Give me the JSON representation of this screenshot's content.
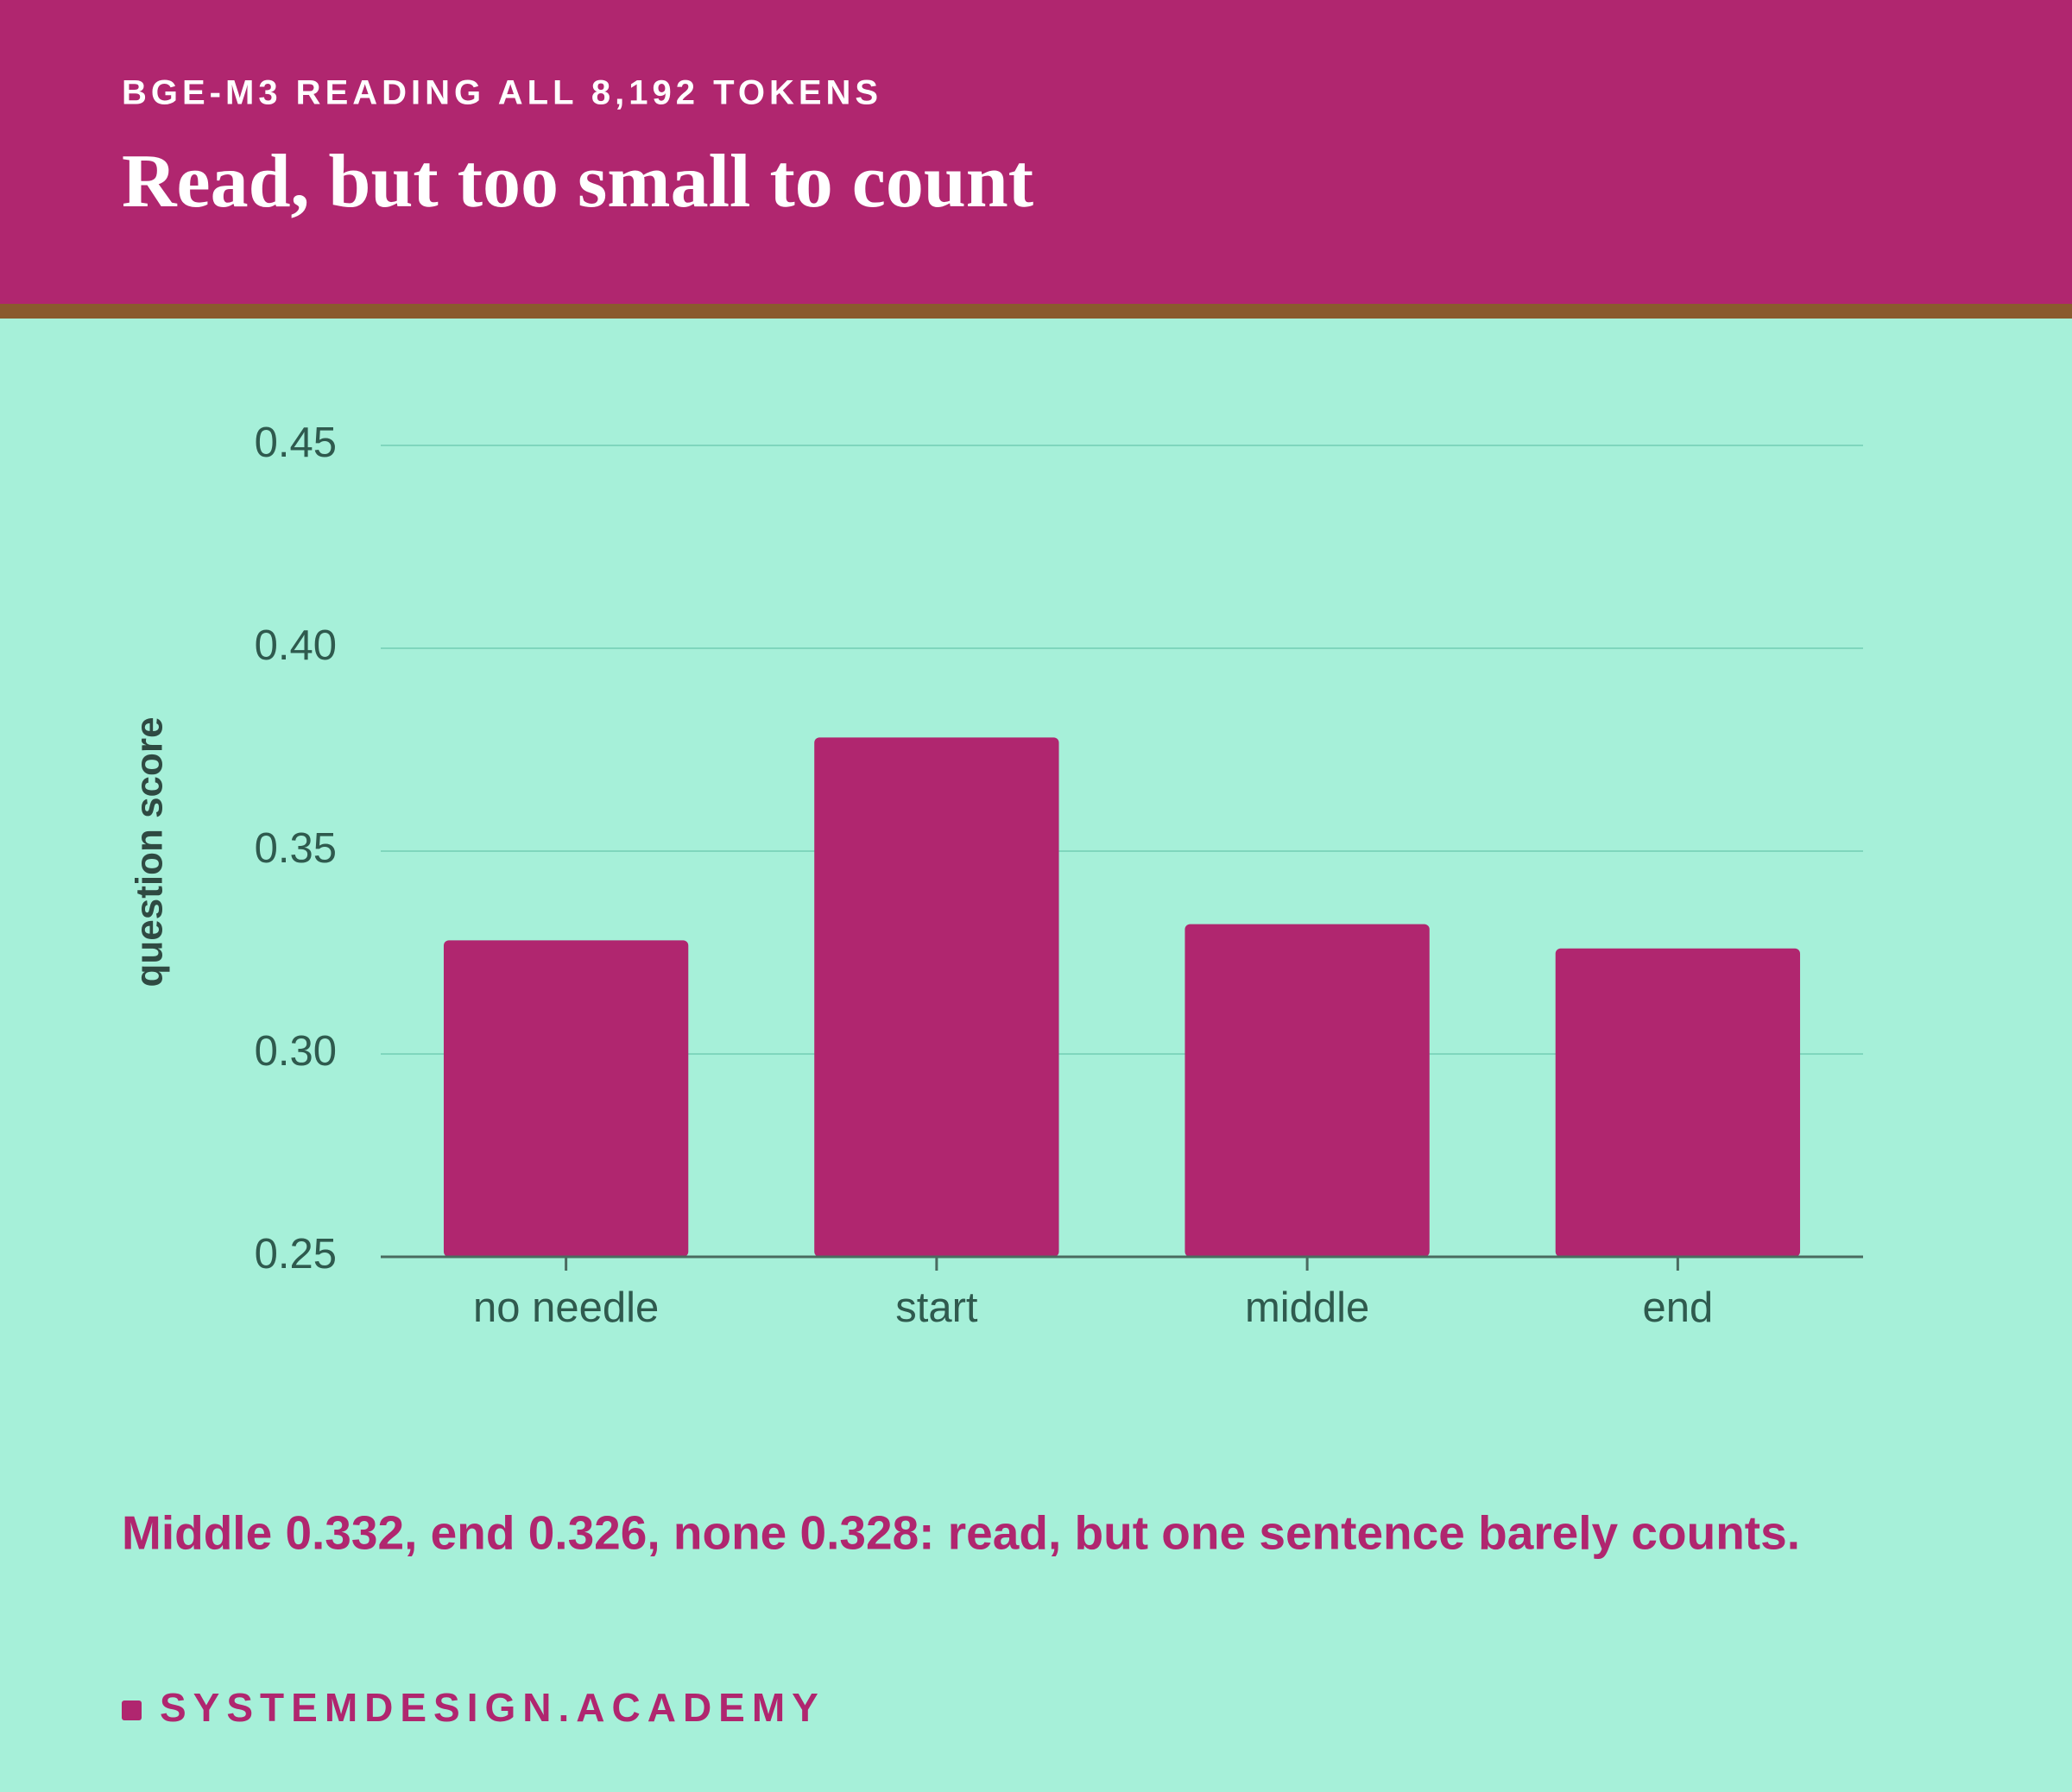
{
  "chart_data": {
    "type": "bar",
    "subtitle": "BGE-M3 READING ALL 8,192 TOKENS",
    "title": "Read, but too small to count",
    "ylabel": "question score",
    "categories": [
      "no needle",
      "start",
      "middle",
      "end"
    ],
    "values": [
      0.328,
      0.378,
      0.332,
      0.326
    ],
    "color": "#b0266f",
    "ylim": [
      0.25,
      0.45
    ],
    "yticks": [
      0.25,
      {
        "value": 0.3,
        "label": "0.30"
      },
      0.35,
      {
        "value": 0.4,
        "label": "0.40"
      },
      0.45
    ],
    "grid": true,
    "annotation": "Middle 0.332, end 0.326, none 0.328: read, but one sentence barely counts.",
    "footer": "SYSTEMDESIGN.ACADEMY"
  }
}
